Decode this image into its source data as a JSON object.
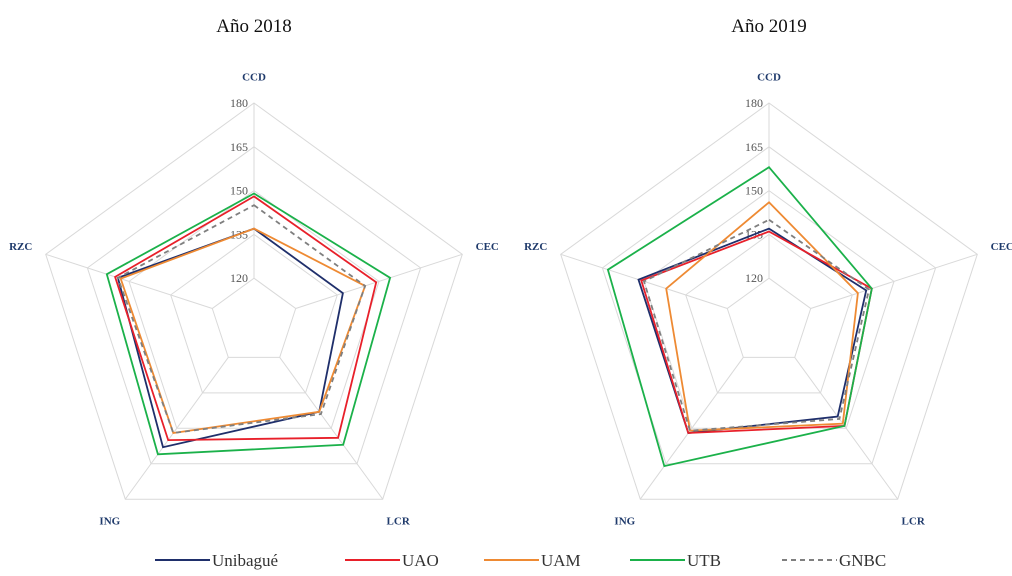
{
  "chart_data": [
    {
      "type": "radar",
      "title": "Año 2018",
      "axes": [
        "CCD",
        "CEC",
        "LCR",
        "ING",
        "RZC"
      ],
      "rlim": [
        105,
        180
      ],
      "ticks": [
        120,
        135,
        150,
        165,
        180
      ],
      "series": [
        {
          "name": "Unibagué",
          "values": [
            137,
            137,
            143,
            158,
            154
          ]
        },
        {
          "name": "UAO",
          "values": [
            148,
            149,
            154,
            155,
            155
          ]
        },
        {
          "name": "UAM",
          "values": [
            137,
            145,
            143,
            152,
            153
          ]
        },
        {
          "name": "UTB",
          "values": [
            149,
            154,
            157,
            161,
            158
          ]
        },
        {
          "name": "GNBC",
          "values": [
            145,
            145,
            144,
            152,
            154
          ]
        }
      ]
    },
    {
      "type": "radar",
      "title": "Año 2019",
      "axes": [
        "CCD",
        "CEC",
        "LCR",
        "ING",
        "RZC"
      ],
      "rlim": [
        105,
        180
      ],
      "ticks": [
        120,
        135,
        150,
        165,
        180
      ],
      "series": [
        {
          "name": "Unibagué",
          "values": [
            137,
            140,
            145,
            152,
            152
          ]
        },
        {
          "name": "UAO",
          "values": [
            136,
            142,
            149,
            152,
            151
          ]
        },
        {
          "name": "UAM",
          "values": [
            146,
            137,
            148,
            151,
            142
          ]
        },
        {
          "name": "UTB",
          "values": [
            158,
            142,
            149,
            166,
            163
          ]
        },
        {
          "name": "GNBC",
          "values": [
            140,
            141,
            146,
            151,
            150
          ]
        }
      ]
    }
  ],
  "series_styles": [
    {
      "color": "#1f2f6b",
      "dash": ""
    },
    {
      "color": "#e8202a",
      "dash": ""
    },
    {
      "color": "#ee8a33",
      "dash": ""
    },
    {
      "color": "#1bb14a",
      "dash": ""
    },
    {
      "color": "#7f7f7f",
      "dash": "5,4"
    }
  ],
  "legend": [
    "Unibagué",
    "UAO",
    "UAM",
    "UTB",
    "GNBC"
  ],
  "grid_color": "#d9d9d9"
}
